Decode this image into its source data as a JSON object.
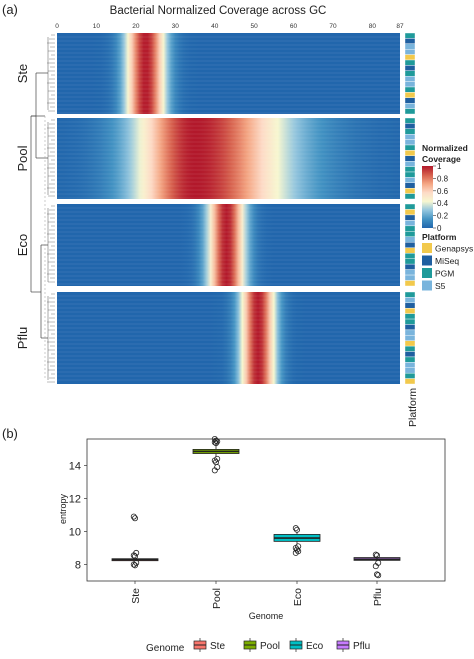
{
  "panel_a": {
    "label": "(a)",
    "title": "Bacterial Normalized Coverage across GC",
    "x_ticks": [
      "0",
      "10",
      "20",
      "30",
      "40",
      "50",
      "60",
      "70",
      "80",
      "87"
    ],
    "groups": [
      "Ste",
      "Pool",
      "Eco",
      "Pflu"
    ],
    "platform_axis_label": "Platform",
    "colorbar_title_line1": "Normalized",
    "colorbar_title_line2": "Coverage",
    "colorbar_ticks": [
      "1",
      "0.8",
      "0.6",
      "0.4",
      "0.2",
      "0"
    ],
    "platform_legend_title": "Platform",
    "platforms": [
      {
        "name": "Genapsys",
        "color": "#F2C94C"
      },
      {
        "name": "MiSeq",
        "color": "#1F5FA0"
      },
      {
        "name": "PGM",
        "color": "#1F9A9A"
      },
      {
        "name": "S5",
        "color": "#79B4DC"
      }
    ]
  },
  "panel_b": {
    "label": "(b)",
    "ylabel": "entropy",
    "xlabel": "Genome",
    "y_ticks": [
      "8",
      "10",
      "12",
      "14"
    ],
    "legend_title": "Genome"
  },
  "chart_data": [
    {
      "type": "heatmap",
      "title": "Bacterial Normalized Coverage across GC",
      "x_range": [
        0,
        87
      ],
      "value_range": [
        0,
        1
      ],
      "colorscale": [
        "#2166AC",
        "#4393C3",
        "#92C5DE",
        "#F7F7D0",
        "#FDDBC7",
        "#F4A582",
        "#D6604D",
        "#B2182B"
      ],
      "groups": [
        {
          "name": "Ste",
          "gc_peak": 22.5,
          "gc_band": [
            14,
            30
          ]
        },
        {
          "name": "Pool",
          "gc_peak": 35,
          "gc_band": [
            20,
            68
          ]
        },
        {
          "name": "Eco",
          "gc_peak": 43,
          "gc_band": [
            36,
            51
          ]
        },
        {
          "name": "Pflu",
          "gc_peak": 51,
          "gc_band": [
            44,
            58
          ]
        }
      ],
      "row_annotation": "Platform"
    },
    {
      "type": "box",
      "xlabel": "Genome",
      "ylabel": "entropy",
      "ylim": [
        7,
        15.6
      ],
      "categories": [
        "Ste",
        "Pool",
        "Eco",
        "Pflu"
      ],
      "colors": [
        "#F8766D",
        "#7CAE00",
        "#00BFC4",
        "#C77CFF"
      ],
      "boxes": [
        {
          "name": "Ste",
          "min": 8.2,
          "q1": 8.25,
          "median": 8.3,
          "q3": 8.35,
          "max": 8.4,
          "outliers": [
            10.9,
            10.8,
            8.7,
            8.55,
            8.5,
            8.1,
            8.0,
            7.95
          ]
        },
        {
          "name": "Pool",
          "min": 14.5,
          "q1": 14.72,
          "median": 14.85,
          "q3": 14.97,
          "max": 15.25,
          "outliers": [
            15.6,
            15.5,
            15.45,
            15.4,
            15.35,
            14.4,
            14.3,
            14.2,
            13.9,
            13.7
          ]
        },
        {
          "name": "Eco",
          "min": 9.2,
          "q1": 9.4,
          "median": 9.6,
          "q3": 9.82,
          "max": 10.0,
          "outliers": [
            10.2,
            10.1,
            9.1,
            9.0,
            8.9,
            8.8,
            8.7
          ]
        },
        {
          "name": "Pflu",
          "min": 8.2,
          "q1": 8.25,
          "median": 8.32,
          "q3": 8.42,
          "max": 8.5,
          "outliers": [
            8.6,
            8.55,
            8.1,
            7.9,
            7.4,
            7.35
          ]
        }
      ],
      "y_ticks": [
        8,
        10,
        12,
        14
      ],
      "legend": "bottom"
    }
  ]
}
